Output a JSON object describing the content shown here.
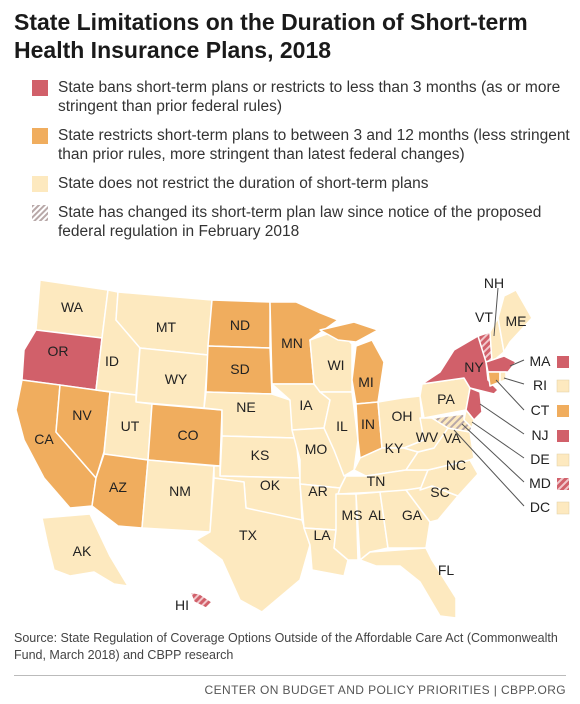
{
  "title": "State Limitations on the Duration of Short-term Health Insurance Plans, 2018",
  "colors": {
    "bans": "#d1606a",
    "restricts": "#f0ad5e",
    "none": "#fde9bf",
    "changed_stripe": "#b8a8a8",
    "border": "#ffffff"
  },
  "legend": [
    {
      "key": "bans",
      "text": "State bans short-term plans or restricts to less than 3 months (as or more stringent than prior federal rules)"
    },
    {
      "key": "restricts",
      "text": "State restricts short-term plans to between 3 and 12 months (less stringent than prior rules, more stringent than latest federal changes)"
    },
    {
      "key": "none",
      "text": "State does not restrict the duration of short-term plans"
    },
    {
      "key": "changed",
      "text": "State has changed its short-term plan law since notice of the proposed federal regulation in February 2018"
    }
  ],
  "states": {
    "WA": "WA",
    "OR": "OR",
    "ID": "ID",
    "MT": "MT",
    "WY": "WY",
    "CA": "CA",
    "NV": "NV",
    "UT": "UT",
    "AZ": "AZ",
    "CO": "CO",
    "NM": "NM",
    "ND": "ND",
    "SD": "SD",
    "NE": "NE",
    "KS": "KS",
    "OK": "OK",
    "TX": "TX",
    "MN": "MN",
    "IA": "IA",
    "MO": "MO",
    "AR": "AR",
    "LA": "LA",
    "WI": "WI",
    "IL": "IL",
    "MI": "MI",
    "IN": "IN",
    "OH": "OH",
    "KY": "KY",
    "TN": "TN",
    "MS": "MS",
    "AL": "AL",
    "GA": "GA",
    "FL": "FL",
    "SC": "SC",
    "NC": "NC",
    "VA": "VA",
    "WV": "WV",
    "PA": "PA",
    "NY": "NY",
    "VT": "VT",
    "NH": "NH",
    "ME": "ME",
    "AK": "AK",
    "HI": "HI",
    "MA": "MA",
    "RI": "RI",
    "CT": "CT",
    "NJ": "NJ",
    "DE": "DE",
    "MD": "MD",
    "DC": "DC"
  },
  "source": "Source: State Regulation of Coverage Options Outside of the Affordable Care Act (Commonwealth Fund, March 2018) and CBPP research",
  "footer": "CENTER ON BUDGET AND POLICY PRIORITIES | CBPP.ORG"
}
